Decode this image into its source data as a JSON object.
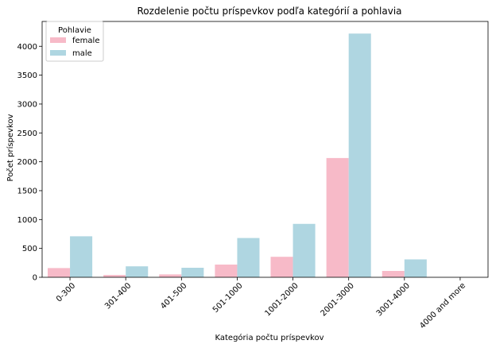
{
  "chart_data": {
    "type": "bar",
    "title": "Rozdelenie počtu príspevkov podľa kategórií a pohlavia",
    "xlabel": "Kategória počtu príspevkov",
    "ylabel": "Počet príspevkov",
    "categories": [
      "0-300",
      "301-400",
      "401-500",
      "501-1000",
      "1001-2000",
      "2001-3000",
      "3001-4000",
      "4000 and more"
    ],
    "series": [
      {
        "name": "female",
        "color": "#f7bac8",
        "values": [
          160,
          40,
          50,
          220,
          355,
          2065,
          110,
          0
        ]
      },
      {
        "name": "male",
        "color": "#afd6e1",
        "values": [
          710,
          190,
          165,
          680,
          925,
          4220,
          310,
          0
        ]
      }
    ],
    "ylim": [
      0,
      4430
    ],
    "yticks": [
      0,
      500,
      1000,
      1500,
      2000,
      2500,
      3000,
      3500,
      4000
    ],
    "legend": {
      "title": "Pohlavie",
      "placement": "top-left"
    },
    "grid": false
  }
}
